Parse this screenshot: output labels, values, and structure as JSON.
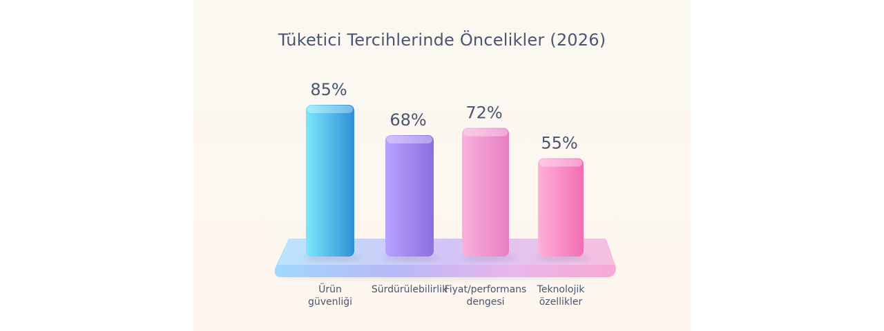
{
  "chart_data": {
    "type": "bar",
    "title": "Tüketici Tercihlerinde Öncelikler (2026)",
    "categories": [
      [
        "Ürün",
        "güvenliği"
      ],
      [
        "Sürdürülebilirlik"
      ],
      [
        "Fiyat/performans",
        "dengesi"
      ],
      [
        "Teknolojik",
        "özellikler"
      ]
    ],
    "values": [
      85,
      68,
      72,
      55
    ],
    "value_labels": [
      "85%",
      "68%",
      "72%",
      "55%"
    ],
    "colors": [
      [
        "#7ee6fb",
        "#2f8fd6"
      ],
      [
        "#b7a2ff",
        "#8c6fe0"
      ],
      [
        "#f9b0dc",
        "#e77fc2"
      ],
      [
        "#ffb0d8",
        "#f06eb3"
      ]
    ],
    "xlabel": "",
    "ylabel": "",
    "ylim": [
      0,
      100
    ],
    "grid": false,
    "legend": "none"
  }
}
